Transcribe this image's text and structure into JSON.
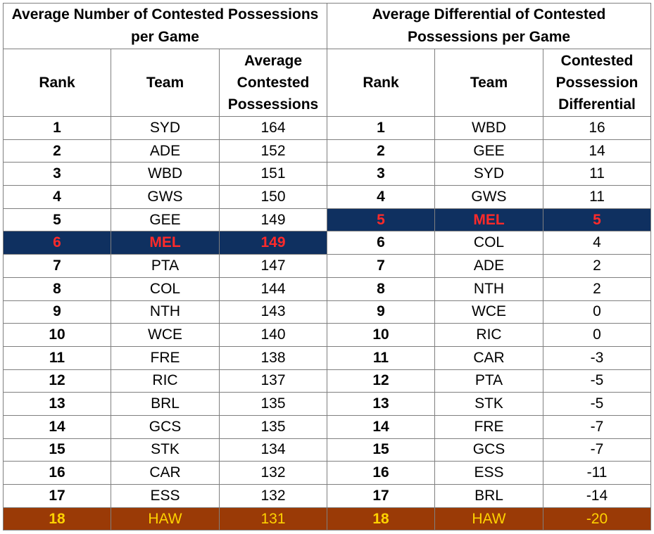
{
  "left_table": {
    "title": "Average Number of Contested Possessions per Game",
    "headers": [
      "Rank",
      "Team",
      "Average Contested Possessions"
    ],
    "rows": [
      [
        "1",
        "SYD",
        "164"
      ],
      [
        "2",
        "ADE",
        "152"
      ],
      [
        "3",
        "WBD",
        "151"
      ],
      [
        "4",
        "GWS",
        "150"
      ],
      [
        "5",
        "GEE",
        "149"
      ],
      [
        "6",
        "MEL",
        "149"
      ],
      [
        "7",
        "PTA",
        "147"
      ],
      [
        "8",
        "COL",
        "144"
      ],
      [
        "9",
        "NTH",
        "143"
      ],
      [
        "10",
        "WCE",
        "140"
      ],
      [
        "11",
        "FRE",
        "138"
      ],
      [
        "12",
        "RIC",
        "137"
      ],
      [
        "13",
        "BRL",
        "135"
      ],
      [
        "14",
        "GCS",
        "135"
      ],
      [
        "15",
        "STK",
        "134"
      ],
      [
        "16",
        "CAR",
        "132"
      ],
      [
        "17",
        "ESS",
        "132"
      ],
      [
        "18",
        "HAW",
        "131"
      ]
    ]
  },
  "right_table": {
    "title": "Average Differential of Contested Possessions per Game",
    "headers": [
      "Rank",
      "Team",
      "Contested Possession Differential"
    ],
    "rows": [
      [
        "1",
        "WBD",
        "16"
      ],
      [
        "2",
        "GEE",
        "14"
      ],
      [
        "3",
        "SYD",
        "11"
      ],
      [
        "4",
        "GWS",
        "11"
      ],
      [
        "5",
        "MEL",
        "5"
      ],
      [
        "6",
        "COL",
        "4"
      ],
      [
        "7",
        "ADE",
        "2"
      ],
      [
        "8",
        "NTH",
        "2"
      ],
      [
        "9",
        "WCE",
        "0"
      ],
      [
        "10",
        "RIC",
        "0"
      ],
      [
        "11",
        "CAR",
        "-3"
      ],
      [
        "12",
        "PTA",
        "-5"
      ],
      [
        "13",
        "STK",
        "-5"
      ],
      [
        "14",
        "FRE",
        "-7"
      ],
      [
        "15",
        "GCS",
        "-7"
      ],
      [
        "16",
        "ESS",
        "-11"
      ],
      [
        "17",
        "BRL",
        "-14"
      ],
      [
        "18",
        "HAW",
        "-20"
      ]
    ]
  },
  "highlight": {
    "mel_color": "#ff2a2a",
    "mel_bg": "#0f3060",
    "haw_color": "#ffd200",
    "haw_bg": "#9a3a06"
  }
}
